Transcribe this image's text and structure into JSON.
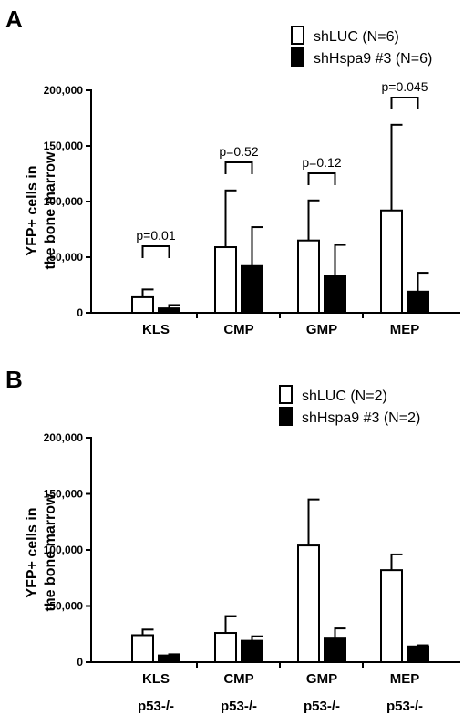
{
  "chart_data": [
    {
      "type": "bar",
      "panel": "A",
      "ylabel": [
        "YFP+ cells in",
        "the bone marrow"
      ],
      "ylim": [
        0,
        200000
      ],
      "yticks": [
        0,
        50000,
        100000,
        150000,
        200000
      ],
      "ytick_labels": [
        "0",
        "50,000",
        "100,000",
        "150,000",
        "200,000"
      ],
      "categories": [
        "KLS",
        "CMP",
        "GMP",
        "MEP"
      ],
      "series": [
        {
          "name": "shLUC (N=6)",
          "fill": "#ffffff",
          "values": [
            14000,
            59000,
            65000,
            92000
          ],
          "errors": [
            7000,
            51000,
            36000,
            77000
          ]
        },
        {
          "name": "shHspa9 #3 (N=6)",
          "fill": "#000000",
          "values": [
            4000,
            42000,
            33000,
            19000
          ],
          "errors": [
            3000,
            35000,
            28000,
            17000
          ]
        }
      ],
      "annotations": [
        "p=0.01",
        "p=0.52",
        "p=0.12",
        "p=0.045"
      ]
    },
    {
      "type": "bar",
      "panel": "B",
      "ylabel": [
        "YFP+ cells in",
        "the bone marrow"
      ],
      "ylim": [
        0,
        200000
      ],
      "yticks": [
        0,
        50000,
        100000,
        150000,
        200000
      ],
      "ytick_labels": [
        "0",
        "50,000",
        "100,000",
        "150,000",
        "200,000"
      ],
      "categories": [
        "KLS",
        "CMP",
        "GMP",
        "MEP"
      ],
      "category_sublabels": [
        "p53-/-",
        "p53-/-",
        "p53-/-",
        "p53-/-"
      ],
      "series": [
        {
          "name": "shLUC (N=2)",
          "fill": "#ffffff",
          "values": [
            24000,
            26000,
            104000,
            82000
          ],
          "errors": [
            5000,
            15000,
            41000,
            14000
          ]
        },
        {
          "name": "shHspa9 #3 (N=2)",
          "fill": "#000000",
          "values": [
            6000,
            19000,
            21000,
            14000
          ],
          "errors": [
            1000,
            4000,
            9000,
            1000
          ]
        }
      ],
      "annotations": []
    }
  ]
}
